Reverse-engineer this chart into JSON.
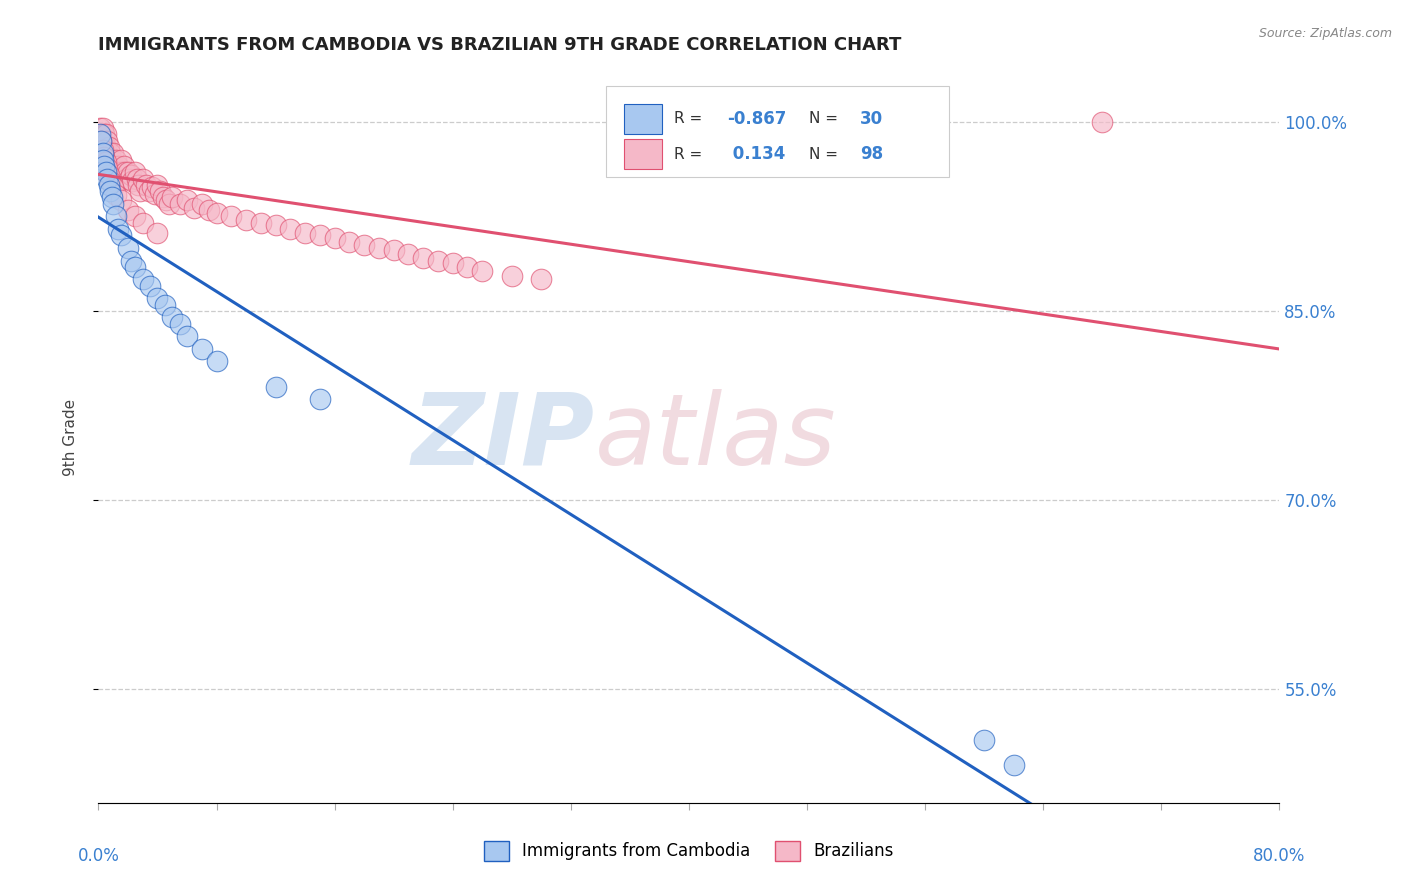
{
  "title": "IMMIGRANTS FROM CAMBODIA VS BRAZILIAN 9TH GRADE CORRELATION CHART",
  "source": "Source: ZipAtlas.com",
  "ylabel": "9th Grade",
  "ytick_labels": [
    "55.0%",
    "70.0%",
    "85.0%",
    "100.0%"
  ],
  "ytick_values": [
    0.55,
    0.7,
    0.85,
    1.0
  ],
  "xmin": 0.0,
  "xmax": 0.8,
  "ymin": 0.46,
  "ymax": 1.04,
  "legend_cambodia_label": "Immigrants from Cambodia",
  "legend_brazil_label": "Brazilians",
  "R_cambodia": -0.867,
  "N_cambodia": 30,
  "R_brazil": 0.134,
  "N_brazil": 98,
  "cambodia_color": "#a8c8f0",
  "brazil_color": "#f5b8c8",
  "trendline_cambodia_color": "#2060c0",
  "trendline_brazil_color": "#e05070",
  "background_color": "#ffffff",
  "watermark_zip": "ZIP",
  "watermark_atlas": "atlas",
  "watermark_color_zip": "#b0c8e0",
  "watermark_color_atlas": "#c8a0b0",
  "cambodia_scatter_x": [
    0.001,
    0.002,
    0.003,
    0.003,
    0.004,
    0.005,
    0.006,
    0.007,
    0.008,
    0.009,
    0.01,
    0.012,
    0.013,
    0.015,
    0.02,
    0.022,
    0.025,
    0.03,
    0.035,
    0.04,
    0.045,
    0.05,
    0.055,
    0.06,
    0.07,
    0.08,
    0.12,
    0.15,
    0.6,
    0.62
  ],
  "cambodia_scatter_y": [
    0.99,
    0.985,
    0.975,
    0.97,
    0.965,
    0.96,
    0.955,
    0.95,
    0.945,
    0.94,
    0.935,
    0.925,
    0.915,
    0.91,
    0.9,
    0.89,
    0.885,
    0.875,
    0.87,
    0.86,
    0.855,
    0.845,
    0.84,
    0.83,
    0.82,
    0.81,
    0.79,
    0.78,
    0.51,
    0.49
  ],
  "brazil_scatter_x": [
    0.001,
    0.001,
    0.002,
    0.002,
    0.002,
    0.003,
    0.003,
    0.003,
    0.003,
    0.004,
    0.004,
    0.004,
    0.005,
    0.005,
    0.005,
    0.005,
    0.006,
    0.006,
    0.006,
    0.007,
    0.007,
    0.007,
    0.008,
    0.008,
    0.009,
    0.009,
    0.01,
    0.01,
    0.011,
    0.012,
    0.012,
    0.013,
    0.014,
    0.015,
    0.016,
    0.017,
    0.018,
    0.019,
    0.02,
    0.021,
    0.022,
    0.023,
    0.025,
    0.026,
    0.027,
    0.028,
    0.03,
    0.032,
    0.034,
    0.036,
    0.038,
    0.04,
    0.042,
    0.044,
    0.046,
    0.048,
    0.05,
    0.055,
    0.06,
    0.065,
    0.07,
    0.075,
    0.08,
    0.09,
    0.1,
    0.11,
    0.12,
    0.13,
    0.14,
    0.15,
    0.16,
    0.17,
    0.18,
    0.19,
    0.2,
    0.21,
    0.22,
    0.23,
    0.24,
    0.25,
    0.26,
    0.28,
    0.3,
    0.002,
    0.003,
    0.004,
    0.005,
    0.006,
    0.007,
    0.008,
    0.01,
    0.012,
    0.015,
    0.02,
    0.025,
    0.03,
    0.04,
    0.68
  ],
  "brazil_scatter_y": [
    0.995,
    0.985,
    0.99,
    0.98,
    0.975,
    0.995,
    0.985,
    0.975,
    0.965,
    0.99,
    0.98,
    0.97,
    0.99,
    0.98,
    0.97,
    0.96,
    0.985,
    0.975,
    0.965,
    0.98,
    0.97,
    0.96,
    0.975,
    0.965,
    0.97,
    0.96,
    0.975,
    0.965,
    0.96,
    0.97,
    0.96,
    0.965,
    0.96,
    0.97,
    0.96,
    0.965,
    0.96,
    0.955,
    0.96,
    0.955,
    0.958,
    0.953,
    0.96,
    0.955,
    0.95,
    0.945,
    0.955,
    0.95,
    0.945,
    0.948,
    0.943,
    0.95,
    0.945,
    0.94,
    0.938,
    0.935,
    0.94,
    0.935,
    0.938,
    0.932,
    0.935,
    0.93,
    0.928,
    0.925,
    0.922,
    0.92,
    0.918,
    0.915,
    0.912,
    0.91,
    0.908,
    0.905,
    0.902,
    0.9,
    0.898,
    0.895,
    0.892,
    0.89,
    0.888,
    0.885,
    0.882,
    0.878,
    0.875,
    0.985,
    0.978,
    0.972,
    0.968,
    0.963,
    0.958,
    0.953,
    0.948,
    0.942,
    0.938,
    0.93,
    0.925,
    0.92,
    0.912,
    1.0
  ]
}
